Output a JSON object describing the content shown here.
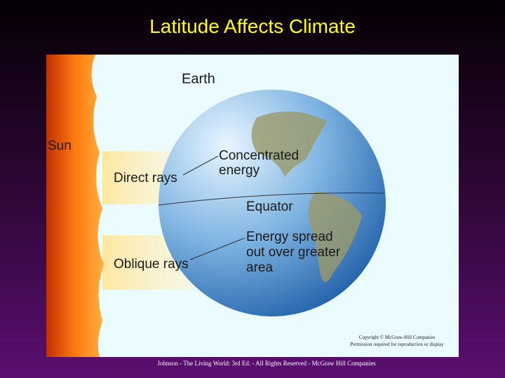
{
  "title": "Latitude Affects Climate",
  "figure": {
    "earth": "Earth",
    "sun": "Sun",
    "direct_rays": "Direct rays",
    "concentrated": [
      "Concentrated",
      "energy"
    ],
    "equator": "Equator",
    "spread": [
      "Energy spread",
      "out over greater",
      "area"
    ],
    "oblique_rays": "Oblique rays",
    "copyright": [
      "Copyright © McGraw-Hill Companies",
      "Permission required for reproduction or display"
    ]
  },
  "footer": "Johnson - The Living World: 3rd Ed. - All Rights Reserved - McGraw Hill Companies"
}
